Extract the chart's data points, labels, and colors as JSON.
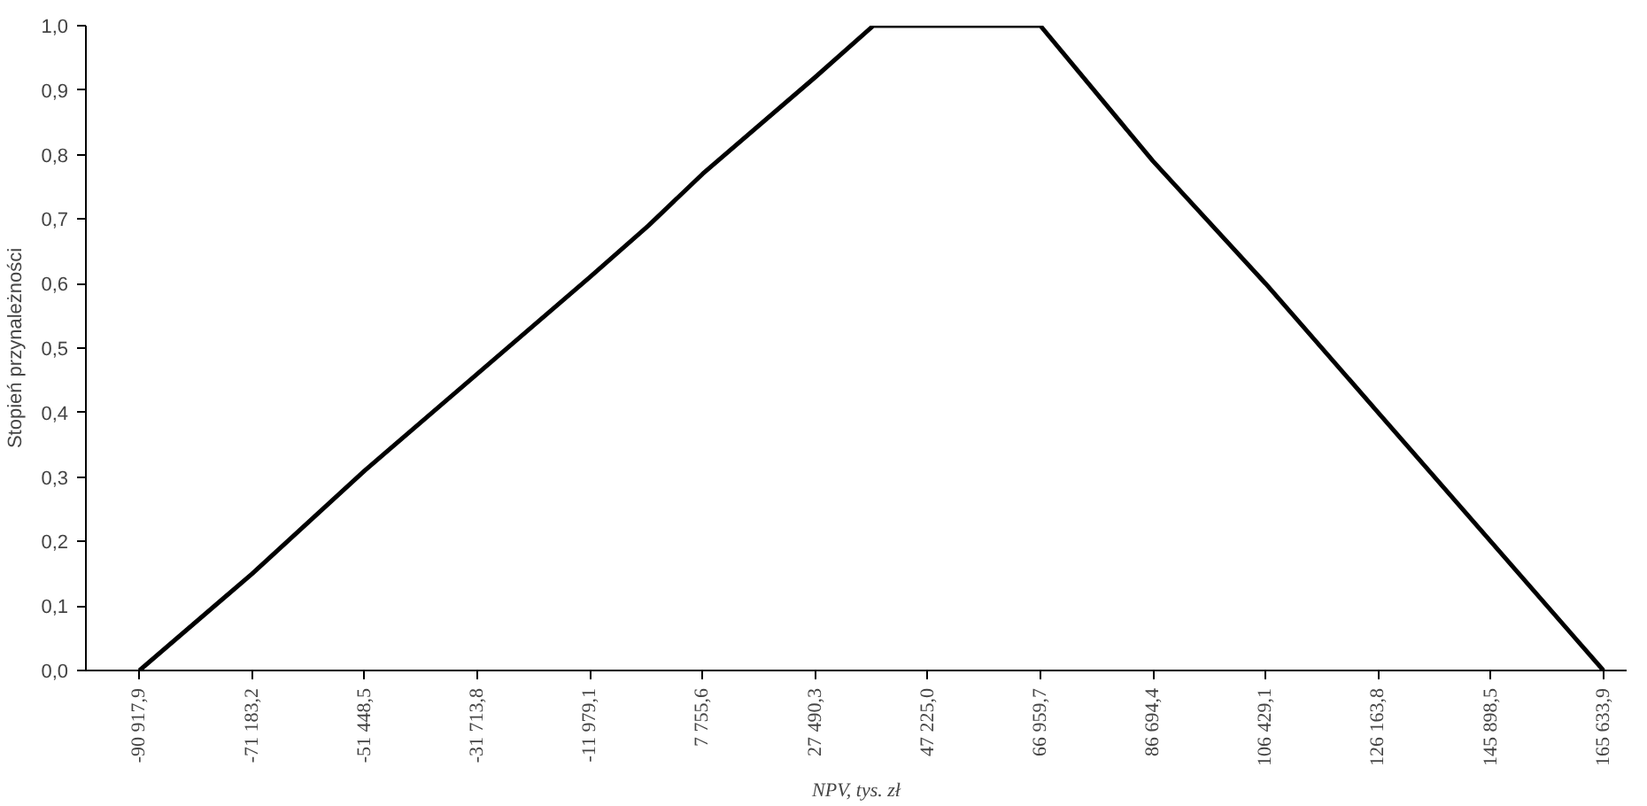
{
  "chart_data": {
    "type": "line",
    "xlabel": "NPV, tys. zł",
    "ylabel": "Stopień przynależności",
    "x": [
      -90917.9,
      -71183.2,
      -51448.5,
      -31713.8,
      -11979.1,
      -1700,
      7755.6,
      27490.3,
      37700,
      47225.0,
      66959.7,
      86694.4,
      106429.1,
      126163.8,
      145898.5,
      165633.9
    ],
    "series": [
      {
        "color": "#000000",
        "values": [
          0,
          0.15,
          0.31,
          0.46,
          0.61,
          0.69,
          0.77,
          0.92,
          1.0,
          1.0,
          1.0,
          0.79,
          0.6,
          0.4,
          0.2,
          0
        ]
      }
    ],
    "xlim": [
      -100300,
      169700
    ],
    "ylim": [
      0,
      1.0
    ],
    "xticks": [
      {
        "value": -90917.9,
        "label": "-90 917,9"
      },
      {
        "value": -71183.2,
        "label": "-71 183,2"
      },
      {
        "value": -51448.5,
        "label": "-51 448,5"
      },
      {
        "value": -31713.8,
        "label": "-31 713,8"
      },
      {
        "value": -11979.1,
        "label": "-11 979,1"
      },
      {
        "value": 7755.6,
        "label": "7 755,6"
      },
      {
        "value": 27490.3,
        "label": "27 490,3"
      },
      {
        "value": 47225.0,
        "label": "47 225,0"
      },
      {
        "value": 66959.7,
        "label": "66 959,7"
      },
      {
        "value": 86694.4,
        "label": "86 694,4"
      },
      {
        "value": 106429.1,
        "label": "106 429,1"
      },
      {
        "value": 126163.8,
        "label": "126 163,8"
      },
      {
        "value": 145898.5,
        "label": "145 898,5"
      },
      {
        "value": 165633.9,
        "label": "165 633,9"
      }
    ],
    "yticks": [
      {
        "value": 0,
        "label": "0,0"
      },
      {
        "value": 0.1,
        "label": "0,1"
      },
      {
        "value": 0.2,
        "label": "0,2"
      },
      {
        "value": 0.3,
        "label": "0,3"
      },
      {
        "value": 0.4,
        "label": "0,4"
      },
      {
        "value": 0.5,
        "label": "0,5"
      },
      {
        "value": 0.6,
        "label": "0,6"
      },
      {
        "value": 0.7,
        "label": "0,7"
      },
      {
        "value": 0.8,
        "label": "0,8"
      },
      {
        "value": 0.9,
        "label": "0,9"
      },
      {
        "value": 1.0,
        "label": "1,0"
      }
    ],
    "grid": false,
    "marker": "none",
    "line_style": "solid"
  }
}
